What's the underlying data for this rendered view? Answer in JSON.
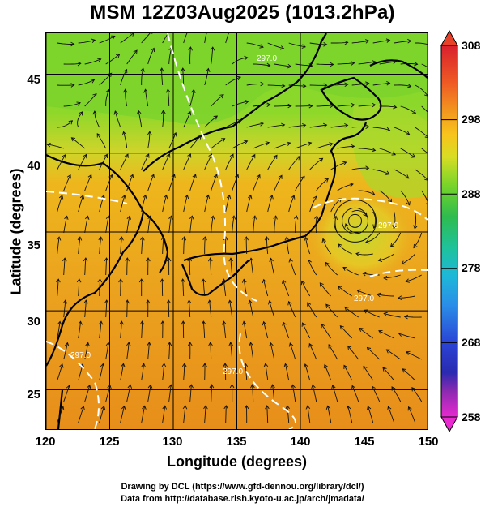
{
  "title": "MSM 12Z03Aug2025 (1013.2hPa)",
  "x_axis": {
    "title": "Longitude (degrees)",
    "ticks": [
      "120",
      "125",
      "130",
      "135",
      "140",
      "145",
      "150"
    ],
    "range": [
      120,
      150
    ]
  },
  "y_axis": {
    "title": "Latitude  (degrees)",
    "ticks": [
      "25",
      "30",
      "35",
      "40",
      "45"
    ],
    "range": [
      22.5,
      47.6
    ]
  },
  "colorbar": {
    "labels": [
      "308",
      "298",
      "288",
      "278",
      "268",
      "258"
    ],
    "range": [
      258,
      308
    ]
  },
  "contour_labels": [
    "297.0",
    "297.0",
    "297.0",
    "297.0",
    "297.0"
  ],
  "credits": {
    "line1": "Drawing by DCL (https://www.gfd-dennou.org/library/dcl/)",
    "line2": "Data from http://database.rish.kyoto-u.ac.jp/arch/jmadata/"
  },
  "colors": {
    "warm": "#e8941c",
    "mid": "#f2b51c",
    "cool": "#6ed428",
    "land": "#000000",
    "contour": "#ffffff"
  },
  "chart_data": {
    "type": "map",
    "title": "MSM 12Z03Aug2025 (1013.2hPa)",
    "xlabel": "Longitude (degrees)",
    "ylabel": "Latitude  (degrees)",
    "xlim": [
      120,
      150
    ],
    "ylim": [
      22.5,
      47.6
    ],
    "xticks": [
      120,
      125,
      130,
      135,
      140,
      145,
      150
    ],
    "yticks": [
      25,
      30,
      35,
      40,
      45
    ],
    "colorbar_ticks": [
      258,
      268,
      278,
      288,
      298,
      308
    ],
    "contour_level": 297.0,
    "vortex_center": {
      "lon": 144.3,
      "lat": 35.7
    },
    "grid": true
  }
}
